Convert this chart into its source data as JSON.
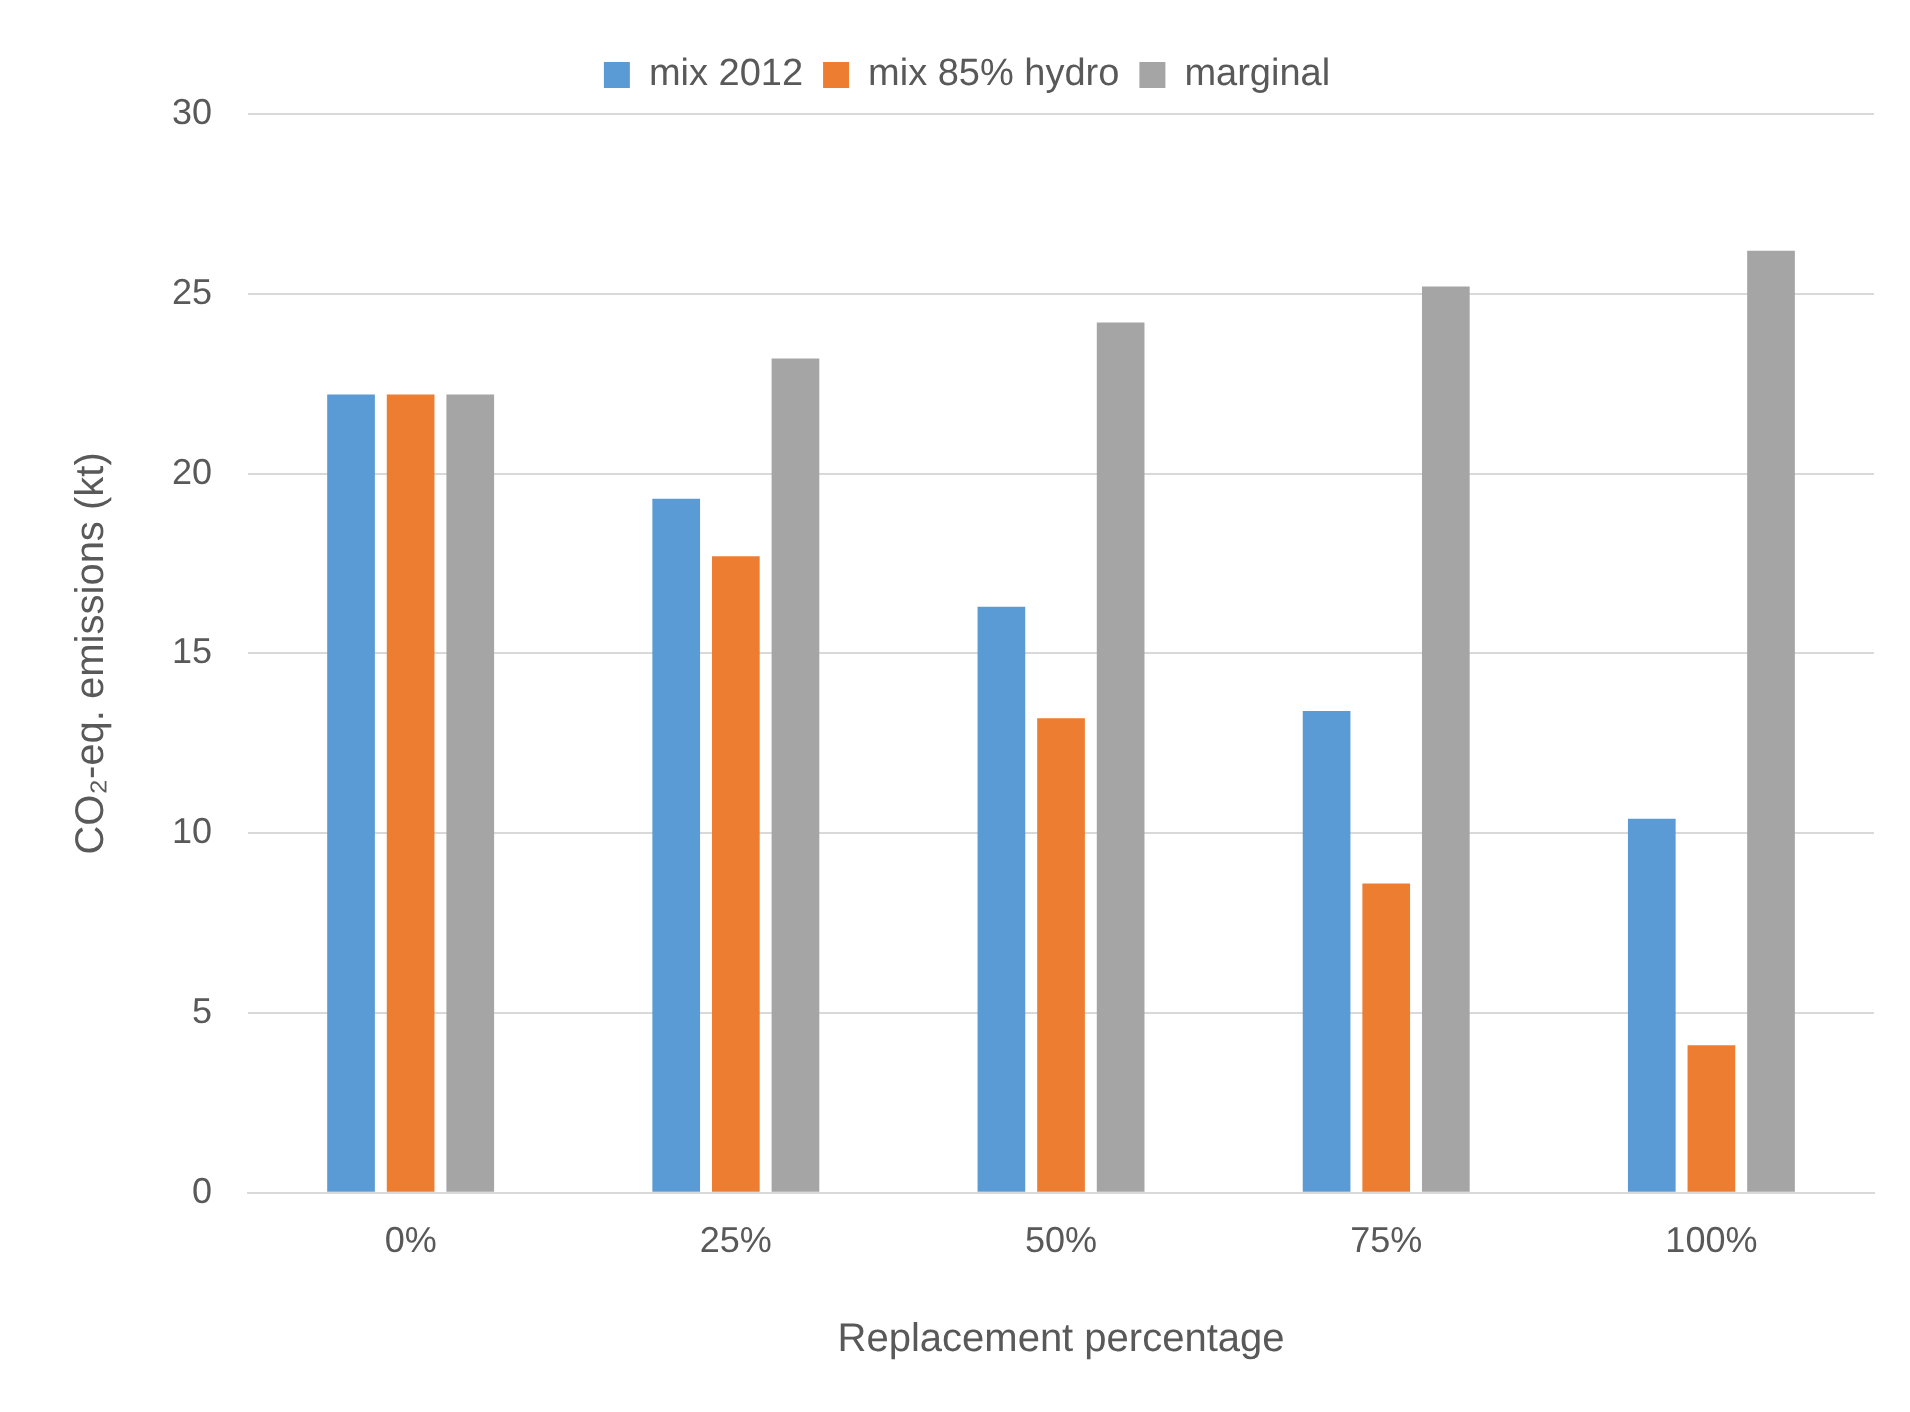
{
  "chart_data": {
    "type": "bar",
    "xlabel": "Replacement percentage",
    "ylabel": "CO₂-eq. emissions (kt)",
    "categories": [
      "0%",
      "25%",
      "50%",
      "75%",
      "100%"
    ],
    "series": [
      {
        "name": "mix 2012",
        "color": "#5b9bd5",
        "values": [
          22.2,
          19.3,
          16.3,
          13.4,
          10.4
        ]
      },
      {
        "name": "mix 85% hydro",
        "color": "#ed7d31",
        "values": [
          22.2,
          17.7,
          13.2,
          8.6,
          4.1
        ]
      },
      {
        "name": "marginal",
        "color": "#a5a5a5",
        "values": [
          22.2,
          23.2,
          24.2,
          25.2,
          26.2
        ]
      }
    ],
    "ylim": [
      0,
      30
    ],
    "yticks": [
      0,
      5,
      10,
      15,
      20,
      25,
      30
    ],
    "grid": "y",
    "legend": "top"
  }
}
